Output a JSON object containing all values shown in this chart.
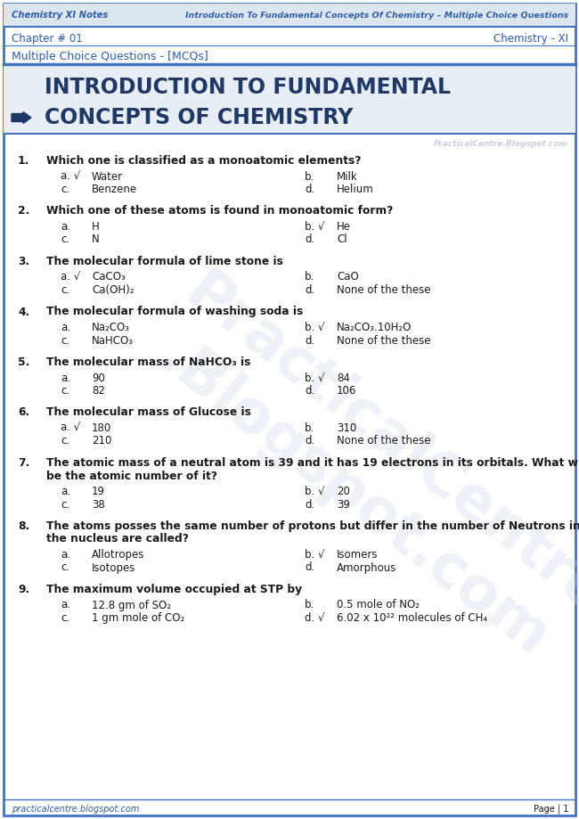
{
  "header_left": "Chemistry XI Notes",
  "header_right": "Introduction To Fundamental Concepts Of Chemistry – Multiple Choice Questions",
  "chapter": "Chapter # 01",
  "subject": "Chemistry - XI",
  "section": "Multiple Choice Questions - [MCQs]",
  "title_line1": "INTRODUCTION TO FUNDAMENTAL",
  "title_line2": "CONCEPTS OF CHEMISTRY",
  "watermark_small": "PracticalCentre.Blogspot.com",
  "website": "practicalcentre.blogspot.com",
  "page": "Page | 1",
  "questions": [
    {
      "num": "1.",
      "question": "Which one is classified as a monoatomic elements?",
      "options": [
        {
          "label": "a. √",
          "text": "Water",
          "col": 0
        },
        {
          "label": "b.",
          "text": "Milk",
          "col": 1
        },
        {
          "label": "c.",
          "text": "Benzene",
          "col": 0
        },
        {
          "label": "d.",
          "text": "Helium",
          "col": 1
        }
      ]
    },
    {
      "num": "2.",
      "question": "Which one of these atoms is found in monoatomic form?",
      "options": [
        {
          "label": "a.",
          "text": "H",
          "col": 0
        },
        {
          "label": "b. √",
          "text": "He",
          "col": 1
        },
        {
          "label": "c.",
          "text": "N",
          "col": 0
        },
        {
          "label": "d.",
          "text": "Cl",
          "col": 1
        }
      ]
    },
    {
      "num": "3.",
      "question": "The molecular formula of lime stone is",
      "options": [
        {
          "label": "a. √",
          "text": "CaCO₃",
          "col": 0
        },
        {
          "label": "b.",
          "text": "CaO",
          "col": 1
        },
        {
          "label": "c.",
          "text": "Ca(OH)₂",
          "col": 0
        },
        {
          "label": "d.",
          "text": "None of the these",
          "col": 1
        }
      ]
    },
    {
      "num": "4.",
      "question": "The molecular formula of washing soda is",
      "options": [
        {
          "label": "a.",
          "text": "Na₂CO₃",
          "col": 0
        },
        {
          "label": "b. √",
          "text": "Na₂CO₃.10H₂O",
          "col": 1
        },
        {
          "label": "c.",
          "text": "NaHCO₃",
          "col": 0
        },
        {
          "label": "d.",
          "text": "None of the these",
          "col": 1
        }
      ]
    },
    {
      "num": "5.",
      "question": "The molecular mass of NaHCO₃ is",
      "options": [
        {
          "label": "a.",
          "text": "90",
          "col": 0
        },
        {
          "label": "b. √",
          "text": "84",
          "col": 1
        },
        {
          "label": "c.",
          "text": "82",
          "col": 0
        },
        {
          "label": "d.",
          "text": "106",
          "col": 1
        }
      ]
    },
    {
      "num": "6.",
      "question": "The molecular mass of Glucose is",
      "options": [
        {
          "label": "a. √",
          "text": "180",
          "col": 0
        },
        {
          "label": "b.",
          "text": "310",
          "col": 1
        },
        {
          "label": "c.",
          "text": "210",
          "col": 0
        },
        {
          "label": "d.",
          "text": "None of the these",
          "col": 1
        }
      ]
    },
    {
      "num": "7.",
      "question": "The atomic mass of a neutral atom is 39 and it has 19 electrons in its orbitals. What will\nbe the atomic number of it?",
      "options": [
        {
          "label": "a.",
          "text": "19",
          "col": 0
        },
        {
          "label": "b. √",
          "text": "20",
          "col": 1
        },
        {
          "label": "c.",
          "text": "38",
          "col": 0
        },
        {
          "label": "d.",
          "text": "39",
          "col": 1
        }
      ]
    },
    {
      "num": "8.",
      "question": "The atoms posses the same number of protons but differ in the number of Neutrons in\nthe nucleus are called?",
      "options": [
        {
          "label": "a.",
          "text": "Allotropes",
          "col": 0
        },
        {
          "label": "b. √",
          "text": "Isomers",
          "col": 1
        },
        {
          "label": "c.",
          "text": "Isotopes",
          "col": 0
        },
        {
          "label": "d.",
          "text": "Amorphous",
          "col": 1
        }
      ]
    },
    {
      "num": "9.",
      "question": "The maximum volume occupied at STP by",
      "options": [
        {
          "label": "a.",
          "text": "12.8 gm of SO₂",
          "col": 0
        },
        {
          "label": "b.",
          "text": "0.5 mole of NO₂",
          "col": 1
        },
        {
          "label": "c.",
          "text": "1 gm mole of CO₂",
          "col": 0
        },
        {
          "label": "d. √",
          "text": "6.02 x 10²² molecules of CH₄",
          "col": 1
        }
      ]
    }
  ],
  "bg_color": "#ffffff",
  "border_color": "#4472c4",
  "header_bg": "#dce6f1",
  "title_bg": "#e8eef5",
  "title_color": "#1f3864",
  "text_color": "#1a1a1a",
  "blue_color": "#2e5ea8",
  "watermark_color": "#c8d0df",
  "opt_color": "#1a1a1a"
}
